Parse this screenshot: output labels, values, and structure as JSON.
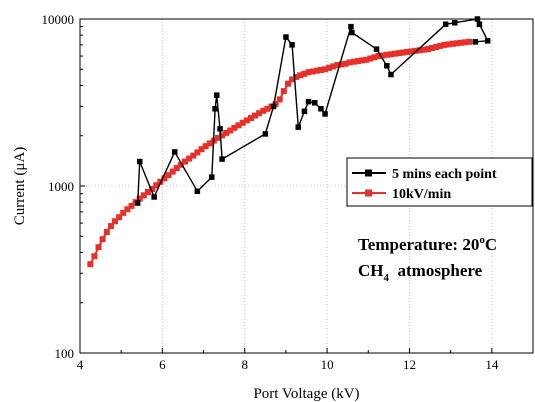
{
  "chart_data": {
    "type": "line",
    "xlabel": "Port Voltage (kV)",
    "ylabel": "Current (μA)",
    "xlim": [
      4,
      15
    ],
    "ylim": [
      100,
      10000
    ],
    "y_scale": "log",
    "x_ticks": [
      4,
      6,
      8,
      10,
      12,
      14
    ],
    "x_tick_labels": [
      "4",
      "6",
      "8",
      "10",
      "12",
      "14"
    ],
    "y_ticks": [
      100,
      1000,
      10000
    ],
    "y_tick_labels": [
      "100",
      "1000",
      "10000"
    ],
    "grid": true,
    "legend_position": "right-middle",
    "annotations": {
      "temperature_prefix": "Temperature: 20",
      "temperature_sup": "o",
      "temperature_suffix": "C",
      "atmosphere_prefix": "CH",
      "atmosphere_sub": "4",
      "atmosphere_suffix": "  atmosphere"
    },
    "series": [
      {
        "name": "5 mins each point",
        "color": "#000000",
        "marker": "square",
        "x": [
          5.4,
          5.45,
          5.8,
          6.3,
          6.85,
          7.2,
          7.28,
          7.32,
          7.4,
          7.45,
          8.5,
          8.7,
          9.0,
          9.15,
          9.3,
          9.45,
          9.55,
          9.7,
          9.85,
          9.95,
          10.58,
          10.6,
          11.2,
          11.45,
          11.55,
          12.88,
          13.1,
          13.65,
          13.7,
          13.9,
          13.6
        ],
        "y": [
          790,
          1400,
          860,
          1600,
          930,
          1130,
          2900,
          3500,
          2200,
          1450,
          2050,
          3000,
          7800,
          7000,
          2250,
          2800,
          3200,
          3150,
          2900,
          2700,
          9000,
          8300,
          6600,
          5250,
          4650,
          9300,
          9500,
          10000,
          9300,
          7400,
          7300
        ]
      },
      {
        "name": "10kV/min",
        "color": "#e8302a",
        "marker": "square",
        "x": [
          4.25,
          4.35,
          4.45,
          4.55,
          4.65,
          4.75,
          4.85,
          4.95,
          5.05,
          5.15,
          5.25,
          5.35,
          5.45,
          5.55,
          5.65,
          5.75,
          5.85,
          5.95,
          6.05,
          6.15,
          6.25,
          6.35,
          6.45,
          6.55,
          6.65,
          6.75,
          6.85,
          6.95,
          7.05,
          7.15,
          7.25,
          7.35,
          7.45,
          7.55,
          7.65,
          7.75,
          7.85,
          7.95,
          8.05,
          8.15,
          8.25,
          8.35,
          8.45,
          8.55,
          8.65,
          8.75,
          8.85,
          8.95,
          9.05,
          9.15,
          9.25,
          9.35,
          9.45,
          9.55,
          9.65,
          9.75,
          9.85,
          9.95,
          10.05,
          10.15,
          10.25,
          10.35,
          10.45,
          10.55,
          10.65,
          10.75,
          10.85,
          10.95,
          11.05,
          11.15,
          11.25,
          11.35,
          11.45,
          11.55,
          11.65,
          11.75,
          11.85,
          11.95,
          12.05,
          12.15,
          12.25,
          12.35,
          12.45,
          12.55,
          12.65,
          12.75,
          12.85,
          12.95,
          13.05,
          13.15,
          13.25,
          13.35,
          13.45
        ],
        "y": [
          340,
          380,
          430,
          480,
          530,
          575,
          615,
          650,
          690,
          725,
          760,
          800,
          840,
          880,
          920,
          960,
          1010,
          1060,
          1110,
          1160,
          1220,
          1280,
          1340,
          1400,
          1460,
          1520,
          1590,
          1660,
          1730,
          1800,
          1870,
          1940,
          2010,
          2080,
          2150,
          2230,
          2310,
          2390,
          2470,
          2550,
          2640,
          2730,
          2820,
          2900,
          2990,
          3100,
          3300,
          3700,
          4100,
          4350,
          4500,
          4600,
          4700,
          4800,
          4850,
          4900,
          4950,
          5000,
          5100,
          5200,
          5300,
          5350,
          5400,
          5500,
          5550,
          5600,
          5650,
          5700,
          5800,
          5900,
          6000,
          6050,
          6100,
          6150,
          6200,
          6250,
          6300,
          6350,
          6400,
          6450,
          6500,
          6550,
          6600,
          6700,
          6800,
          6900,
          7000,
          7050,
          7100,
          7150,
          7200,
          7250,
          7300
        ]
      }
    ]
  }
}
